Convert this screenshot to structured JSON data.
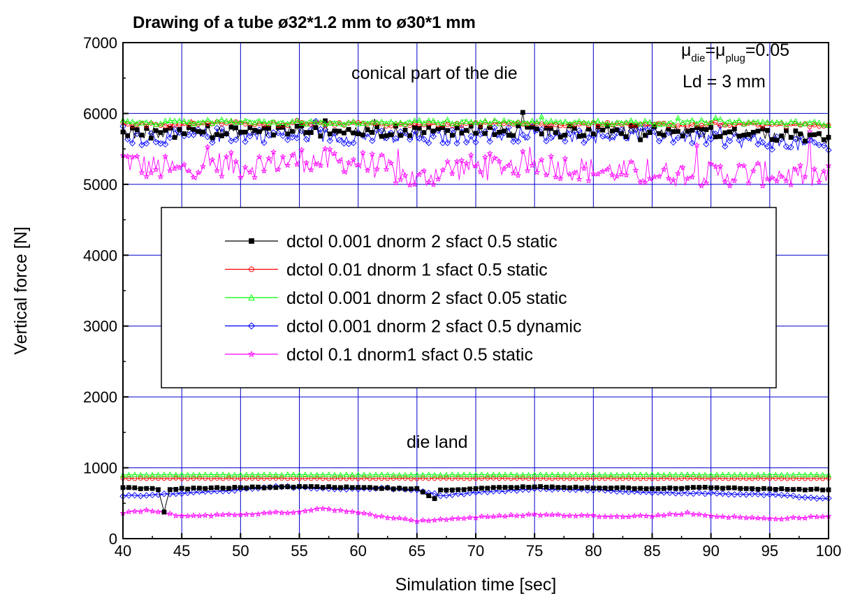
{
  "chart_data": {
    "type": "line",
    "title": "Drawing of a tube ø32*1.2 mm to ø30*1 mm",
    "xlabel": "Simulation time [sec]",
    "ylabel": "Vertical force [N]",
    "xlim": [
      40,
      100
    ],
    "ylim": [
      0,
      7000
    ],
    "x_ticks": [
      40,
      45,
      50,
      55,
      60,
      65,
      70,
      75,
      80,
      85,
      90,
      95,
      100
    ],
    "y_ticks": [
      0,
      1000,
      2000,
      3000,
      4000,
      5000,
      6000,
      7000
    ],
    "grid": true,
    "legend_position": "center",
    "annotations": {
      "top_right_line1": {
        "mu1": "μ",
        "sub1": "die",
        "eq1": "=",
        "mu2": "μ",
        "sub2": "plug",
        "eq2": "=0.05"
      },
      "top_right_line2": "Ld = 3 mm",
      "conical": "conical part of the die",
      "die_land": "die land"
    },
    "series": [
      {
        "name": "dctol 0.001 dnorm 2 sfact 0.5 static",
        "color": "#000000",
        "marker": "square",
        "regions": [
          {
            "x": [
              40,
              45,
              50,
              55,
              60,
              65,
              70,
              75,
              80,
              85,
              90,
              95,
              100
            ],
            "y": [
              5720,
              5740,
              5730,
              5760,
              5750,
              5740,
              5760,
              5750,
              5740,
              5760,
              5730,
              5700,
              5650
            ]
          },
          {
            "x": [
              40,
              43,
              43.5,
              44,
              50,
              55,
              60,
              65,
              66.5,
              67,
              70,
              75,
              80,
              85,
              90,
              95,
              100
            ],
            "y": [
              720,
              700,
              380,
              700,
              720,
              730,
              720,
              700,
              560,
              680,
              710,
              730,
              720,
              710,
              720,
              700,
              690
            ]
          }
        ]
      },
      {
        "name": "dctol 0.01 dnorm 1 sfact 0.5 static",
        "color": "#ff0000",
        "marker": "circle",
        "regions": [
          {
            "x": [
              40,
              45,
              50,
              55,
              60,
              65,
              70,
              75,
              80,
              85,
              90,
              95,
              100
            ],
            "y": [
              5850,
              5840,
              5860,
              5850,
              5850,
              5840,
              5860,
              5850,
              5850,
              5840,
              5850,
              5840,
              5830
            ]
          },
          {
            "x": [
              40,
              45,
              50,
              55,
              60,
              65,
              70,
              75,
              80,
              85,
              90,
              95,
              100
            ],
            "y": [
              850,
              852,
              850,
              851,
              850,
              850,
              851,
              850,
              850,
              851,
              850,
              850,
              850
            ]
          }
        ]
      },
      {
        "name": "dctol 0.001 dnorm 2 sfact 0.05 static",
        "color": "#00ff00",
        "marker": "triangle",
        "regions": [
          {
            "x": [
              40,
              45,
              50,
              55,
              60,
              65,
              70,
              75,
              80,
              85,
              90,
              95,
              100
            ],
            "y": [
              5880,
              5870,
              5890,
              5880,
              5870,
              5880,
              5890,
              5870,
              5880,
              5870,
              5880,
              5870,
              5860
            ]
          },
          {
            "x": [
              40,
              45,
              50,
              55,
              60,
              65,
              70,
              75,
              80,
              85,
              90,
              95,
              100
            ],
            "y": [
              900,
              902,
              900,
              901,
              900,
              900,
              901,
              900,
              900,
              901,
              900,
              900,
              900
            ]
          }
        ]
      },
      {
        "name": "dctol 0.001 dnorm 2 sfact 0.5 dynamic",
        "color": "#0000ff",
        "marker": "diamond",
        "regions": [
          {
            "x": [
              40,
              45,
              50,
              55,
              60,
              65,
              70,
              75,
              80,
              85,
              90,
              95,
              100
            ],
            "y": [
              5650,
              5680,
              5700,
              5690,
              5680,
              5650,
              5700,
              5720,
              5690,
              5700,
              5650,
              5600,
              5530
            ]
          },
          {
            "x": [
              40,
              45,
              50,
              53,
              55,
              60,
              62,
              65,
              67,
              70,
              75,
              80,
              85,
              90,
              95,
              100
            ],
            "y": [
              600,
              640,
              690,
              740,
              720,
              700,
              720,
              680,
              610,
              650,
              700,
              690,
              650,
              640,
              620,
              560
            ]
          }
        ]
      },
      {
        "name": "dctol 0.1 dnorm1 sfact 0.5 static",
        "color": "#ff00ff",
        "marker": "star",
        "regions": [
          {
            "x": [
              40,
              42,
              45,
              48,
              50,
              55,
              60,
              62,
              65,
              67,
              70,
              75,
              80,
              85,
              90,
              95,
              100
            ],
            "y": [
              5350,
              5250,
              5200,
              5300,
              5250,
              5350,
              5300,
              5250,
              5050,
              5200,
              5250,
              5300,
              5200,
              5150,
              5150,
              5150,
              5100
            ]
          },
          {
            "x": [
              40,
              42,
              45,
              50,
              55,
              57,
              60,
              65,
              70,
              75,
              80,
              85,
              88,
              90,
              95,
              100
            ],
            "y": [
              360,
              400,
              320,
              340,
              380,
              430,
              360,
              250,
              300,
              340,
              320,
              320,
              360,
              320,
              280,
              310
            ]
          }
        ]
      }
    ]
  }
}
